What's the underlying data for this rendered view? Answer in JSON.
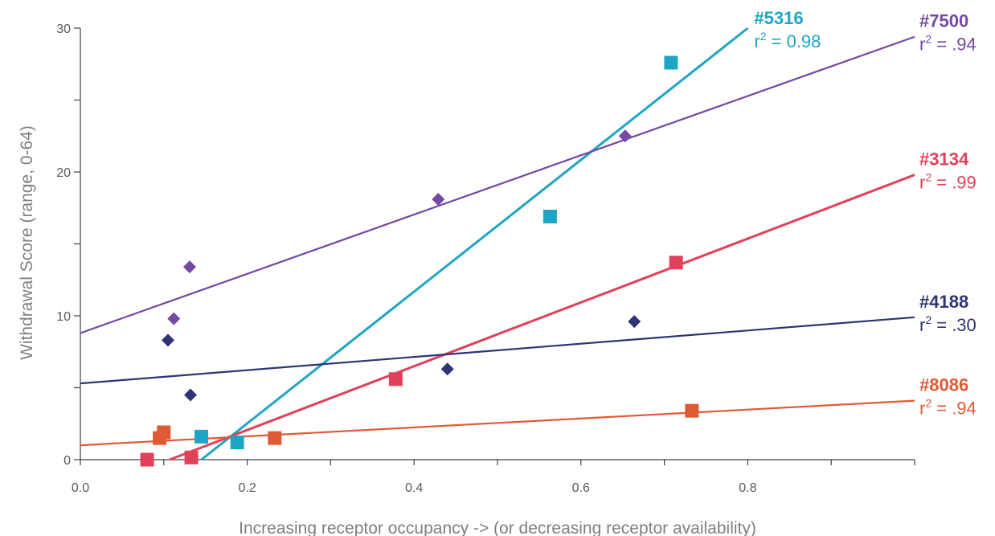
{
  "chart_data": {
    "type": "scatter",
    "title": "",
    "xlabel": "Increasing receptor occupancy -> (or decreasing receptor availability)",
    "ylabel": "Withdrawal Score (range, 0-64)",
    "xlim": [
      0.0,
      1.0
    ],
    "ylim": [
      0,
      30
    ],
    "x_ticks": [
      0.0,
      0.2,
      0.4,
      0.6,
      0.8
    ],
    "x_tick_labels": [
      "0.0",
      "0.2",
      "0.4",
      "0.6",
      "0.8"
    ],
    "y_ticks": [
      0,
      10,
      20,
      30
    ],
    "y_tick_labels": [
      "0",
      "10",
      "20",
      "30"
    ],
    "grid": false,
    "legend": "right (labels at line ends)",
    "r2_prefix": "r",
    "r2_exp": "2",
    "series": [
      {
        "name": "#5316",
        "r2": "= 0.98",
        "color": "#1fa5c4",
        "marker": "square",
        "points": [
          [
            0.145,
            1.6
          ],
          [
            0.188,
            1.2
          ],
          [
            0.563,
            16.9
          ],
          [
            0.708,
            27.6
          ]
        ],
        "trendline": [
          [
            0.145,
            0.0
          ],
          [
            0.8,
            30.0
          ]
        ]
      },
      {
        "name": "#7500",
        "r2": "= .94",
        "color": "#7548a3",
        "marker": "diamond",
        "points": [
          [
            0.112,
            9.8
          ],
          [
            0.131,
            13.4
          ],
          [
            0.429,
            18.1
          ],
          [
            0.653,
            22.5
          ]
        ],
        "trendline": [
          [
            0.0,
            8.8
          ],
          [
            1.0,
            29.4
          ]
        ]
      },
      {
        "name": "#3134",
        "r2": "= .99",
        "color": "#e0415a",
        "marker": "square",
        "points": [
          [
            0.08,
            0.0
          ],
          [
            0.133,
            0.15
          ],
          [
            0.378,
            5.6
          ],
          [
            0.714,
            13.7
          ]
        ],
        "trendline": [
          [
            0.107,
            0.0
          ],
          [
            1.0,
            19.8
          ]
        ]
      },
      {
        "name": "#4188",
        "r2": "= .30",
        "color": "#2e3575",
        "marker": "diamond",
        "points": [
          [
            0.105,
            8.3
          ],
          [
            0.132,
            4.5
          ],
          [
            0.44,
            6.3
          ],
          [
            0.664,
            9.6
          ]
        ],
        "trendline": [
          [
            0.0,
            5.3
          ],
          [
            1.0,
            9.9
          ]
        ]
      },
      {
        "name": "#8086",
        "r2": "= .94",
        "color": "#e05a34",
        "marker": "square",
        "points": [
          [
            0.095,
            1.5
          ],
          [
            0.1,
            1.9
          ],
          [
            0.233,
            1.5
          ],
          [
            0.733,
            3.4
          ]
        ],
        "trendline": [
          [
            0.0,
            1.0
          ],
          [
            1.0,
            4.1
          ]
        ]
      }
    ]
  }
}
